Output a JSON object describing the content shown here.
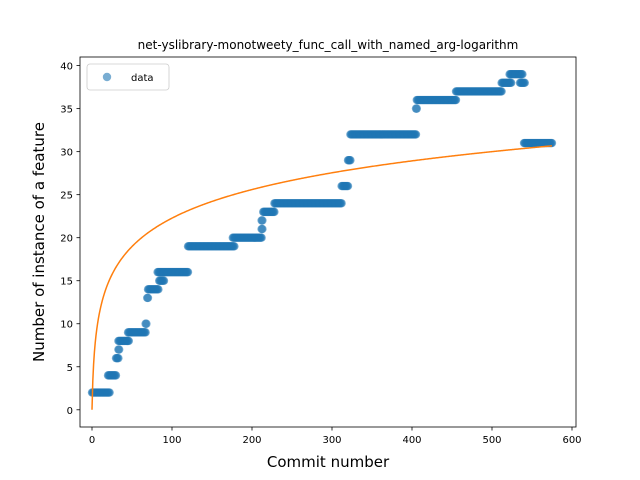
{
  "chart_data": {
    "type": "scatter",
    "title": "net-yslibrary-monotweety_func_call_with_named_arg-logarithm",
    "xlabel": "Commit number",
    "ylabel": "Number of instance of a feature",
    "xlim": [
      -15,
      605
    ],
    "ylim": [
      -2,
      41
    ],
    "x_ticks": [
      0,
      100,
      200,
      300,
      400,
      500,
      600
    ],
    "y_ticks": [
      0,
      5,
      10,
      15,
      20,
      25,
      30,
      35,
      40
    ],
    "grid": false,
    "legend": {
      "position": "top-left",
      "entries": [
        "data"
      ]
    },
    "colors": {
      "data": "#1f77b4",
      "fit": "#ff7f0e"
    },
    "series": [
      {
        "name": "data",
        "type": "scatter",
        "segments": [
          {
            "x_start": 0,
            "x_end": 22,
            "y": 2
          },
          {
            "x_start": 20,
            "x_end": 30,
            "y": 4
          },
          {
            "x_start": 30,
            "x_end": 33,
            "y": 6
          },
          {
            "x_start": 33,
            "x_end": 34,
            "y": 7
          },
          {
            "x_start": 33,
            "x_end": 46,
            "y": 8
          },
          {
            "x_start": 45,
            "x_end": 67,
            "y": 9
          },
          {
            "x_start": 67,
            "x_end": 68,
            "y": 10
          },
          {
            "x_start": 69,
            "x_end": 70,
            "y": 13
          },
          {
            "x_start": 70,
            "x_end": 83,
            "y": 14
          },
          {
            "x_start": 84,
            "x_end": 90,
            "y": 15
          },
          {
            "x_start": 82,
            "x_end": 120,
            "y": 16
          },
          {
            "x_start": 120,
            "x_end": 178,
            "y": 19
          },
          {
            "x_start": 176,
            "x_end": 212,
            "y": 20
          },
          {
            "x_start": 212,
            "x_end": 213,
            "y": 21
          },
          {
            "x_start": 212,
            "x_end": 213,
            "y": 22
          },
          {
            "x_start": 214,
            "x_end": 228,
            "y": 23
          },
          {
            "x_start": 228,
            "x_end": 312,
            "y": 24
          },
          {
            "x_start": 312,
            "x_end": 320,
            "y": 26
          },
          {
            "x_start": 320,
            "x_end": 323,
            "y": 29
          },
          {
            "x_start": 323,
            "x_end": 405,
            "y": 32
          },
          {
            "x_start": 405,
            "x_end": 406,
            "y": 35
          },
          {
            "x_start": 406,
            "x_end": 455,
            "y": 36
          },
          {
            "x_start": 455,
            "x_end": 512,
            "y": 37
          },
          {
            "x_start": 512,
            "x_end": 524,
            "y": 38
          },
          {
            "x_start": 522,
            "x_end": 538,
            "y": 39
          },
          {
            "x_start": 535,
            "x_end": 541,
            "y": 38
          },
          {
            "x_start": 540,
            "x_end": 575,
            "y": 31
          }
        ]
      },
      {
        "type": "line",
        "equation": "y = 4.826 * ln(x + 1)",
        "x_range": [
          0,
          575
        ],
        "points": [
          [
            0,
            0
          ],
          [
            5,
            8.6
          ],
          [
            20,
            14.7
          ],
          [
            50,
            19.0
          ],
          [
            100,
            22.3
          ],
          [
            150,
            24.2
          ],
          [
            200,
            25.6
          ],
          [
            300,
            27.5
          ],
          [
            400,
            28.9
          ],
          [
            500,
            30.0
          ],
          [
            575,
            30.7
          ]
        ]
      }
    ]
  }
}
